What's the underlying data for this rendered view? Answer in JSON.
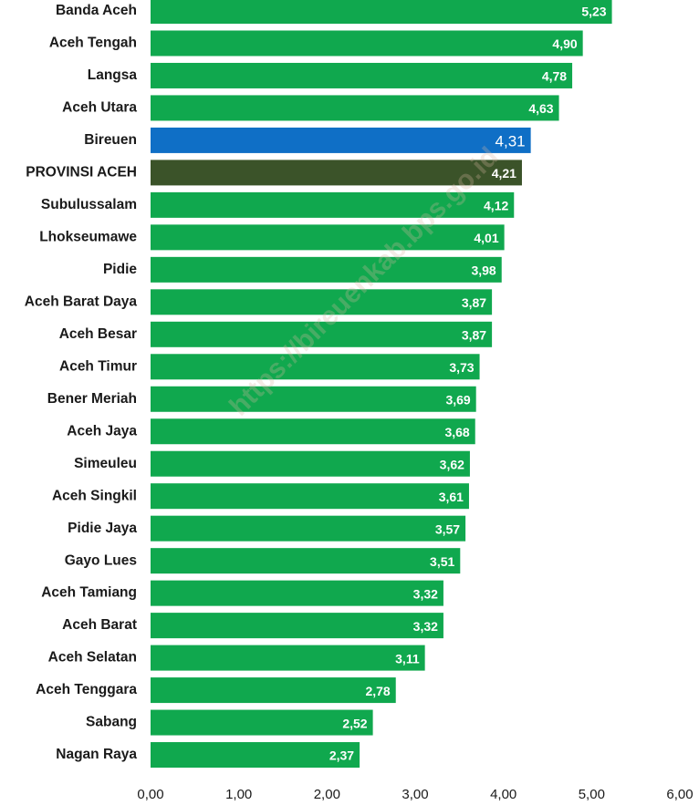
{
  "chart_data": {
    "type": "bar",
    "orientation": "horizontal",
    "watermark": "https://bireuenkab.bps.go.id",
    "categories": [
      "Banda Aceh",
      "Aceh Tengah",
      "Langsa",
      "Aceh Utara",
      "Bireuen",
      "PROVINSI ACEH",
      "Subulussalam",
      "Lhokseumawe",
      "Pidie",
      "Aceh Barat Daya",
      "Aceh Besar",
      "Aceh Timur",
      "Bener Meriah",
      "Aceh Jaya",
      "Simeuleu",
      "Aceh Singkil",
      "Pidie Jaya",
      "Gayo Lues",
      "Aceh Tamiang",
      "Aceh Barat",
      "Aceh Selatan",
      "Aceh Tenggara",
      "Sabang",
      "Nagan Raya"
    ],
    "values": [
      5.23,
      4.9,
      4.78,
      4.63,
      4.31,
      4.21,
      4.12,
      4.01,
      3.98,
      3.87,
      3.87,
      3.73,
      3.69,
      3.68,
      3.62,
      3.61,
      3.57,
      3.51,
      3.32,
      3.32,
      3.11,
      2.78,
      2.52,
      2.37
    ],
    "value_labels": [
      "5,23",
      "4,90",
      "4,78",
      "4,63",
      "4,31",
      "4,21",
      "4,12",
      "4,01",
      "3,98",
      "3,87",
      "3,87",
      "3,73",
      "3,69",
      "3,68",
      "3,62",
      "3,61",
      "3,57",
      "3,51",
      "3,32",
      "3,32",
      "3,11",
      "2,78",
      "2,52",
      "2,37"
    ],
    "colors": [
      "#10a84e",
      "#10a84e",
      "#10a84e",
      "#10a84e",
      "#0f6fc6",
      "#3b5329",
      "#10a84e",
      "#10a84e",
      "#10a84e",
      "#10a84e",
      "#10a84e",
      "#10a84e",
      "#10a84e",
      "#10a84e",
      "#10a84e",
      "#10a84e",
      "#10a84e",
      "#10a84e",
      "#10a84e",
      "#10a84e",
      "#10a84e",
      "#10a84e",
      "#10a84e",
      "#10a84e"
    ],
    "xlim": [
      0,
      6
    ],
    "xticks": [
      {
        "value": 0,
        "label": "0,00"
      },
      {
        "value": 1,
        "label": "1,00"
      },
      {
        "value": 2,
        "label": "2,00"
      },
      {
        "value": 3,
        "label": "3,00"
      },
      {
        "value": 4,
        "label": "4,00"
      },
      {
        "value": 5,
        "label": "5,00"
      },
      {
        "value": 6,
        "label": "6,00"
      }
    ]
  }
}
